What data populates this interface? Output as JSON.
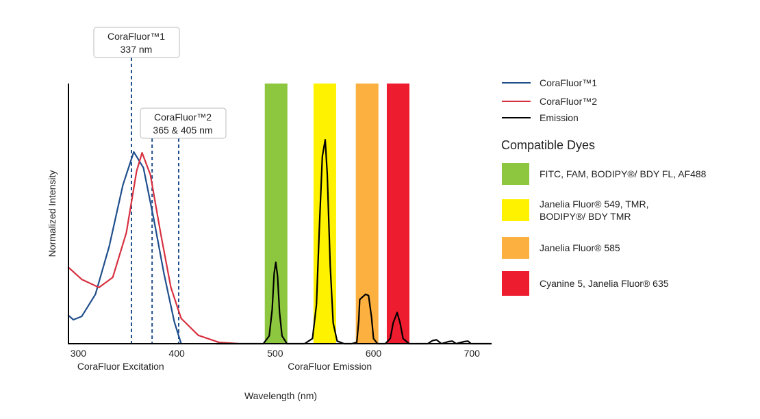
{
  "chart_data": {
    "type": "line",
    "xlabel": "Wavelength (nm)",
    "ylabel": "Normalized Intensity",
    "xlim": [
      290,
      720
    ],
    "ylim": [
      0,
      1
    ],
    "x_ticks": [
      300,
      400,
      500,
      600,
      700
    ],
    "x_sublabels": [
      {
        "text": "CoraFluor Excitation",
        "x": 350
      },
      {
        "text": "CoraFluor Emission",
        "x": 550
      }
    ],
    "grid": false,
    "legend_position": "right",
    "series": [
      {
        "name": "CoraFluor™1",
        "color": "#1f4e8c",
        "points": [
          [
            289.5,
            0.11
          ],
          [
            295,
            0.092
          ],
          [
            303.5,
            0.105
          ],
          [
            317.4,
            0.19
          ],
          [
            331.4,
            0.374
          ],
          [
            345.3,
            0.61
          ],
          [
            356.4,
            0.737
          ],
          [
            366.2,
            0.676
          ],
          [
            376.7,
            0.479
          ],
          [
            387.1,
            0.268
          ],
          [
            397.6,
            0.084
          ],
          [
            404.5,
            0
          ]
        ]
      },
      {
        "name": "CoraFluor™2",
        "color": "#d7303f",
        "points": [
          [
            289.5,
            0.295
          ],
          [
            303.5,
            0.247
          ],
          [
            321,
            0.216
          ],
          [
            335,
            0.255
          ],
          [
            348.8,
            0.426
          ],
          [
            359.2,
            0.663
          ],
          [
            364.8,
            0.734
          ],
          [
            373.2,
            0.65
          ],
          [
            383.6,
            0.426
          ],
          [
            394.1,
            0.216
          ],
          [
            404.5,
            0.097
          ],
          [
            422,
            0.032
          ],
          [
            443,
            0.005
          ],
          [
            463,
            0
          ]
        ]
      },
      {
        "name": "Emission",
        "color": "#000000",
        "points": [
          [
            440,
            0
          ],
          [
            488,
            0
          ],
          [
            494,
            0.03
          ],
          [
            497,
            0.13
          ],
          [
            499,
            0.27
          ],
          [
            500.7,
            0.313
          ],
          [
            502.5,
            0.26
          ],
          [
            504.5,
            0.12
          ],
          [
            507,
            0.03
          ],
          [
            512,
            0
          ],
          [
            530,
            0
          ],
          [
            538,
            0.02
          ],
          [
            542,
            0.15
          ],
          [
            545,
            0.45
          ],
          [
            548,
            0.72
          ],
          [
            550.9,
            0.784
          ],
          [
            553,
            0.65
          ],
          [
            556,
            0.3
          ],
          [
            559,
            0.08
          ],
          [
            563,
            0.01
          ],
          [
            570,
            0
          ],
          [
            578,
            0
          ],
          [
            583,
            0.005
          ],
          [
            585,
            0.09
          ],
          [
            586,
            0.17
          ],
          [
            589,
            0.18
          ],
          [
            592,
            0.19
          ],
          [
            595,
            0.185
          ],
          [
            598,
            0.1
          ],
          [
            600,
            0.02
          ],
          [
            604,
            0
          ],
          [
            612,
            0
          ],
          [
            617,
            0.02
          ],
          [
            620,
            0.08
          ],
          [
            624,
            0.12
          ],
          [
            627,
            0.08
          ],
          [
            630,
            0.02
          ],
          [
            636,
            0
          ],
          [
            655,
            0
          ],
          [
            660,
            0.012
          ],
          [
            664,
            0.015
          ],
          [
            669,
            0
          ],
          [
            676,
            0.008
          ],
          [
            680,
            0.01
          ],
          [
            684,
            0
          ],
          [
            692,
            0.008
          ],
          [
            696,
            0.01
          ],
          [
            699,
            0
          ],
          [
            720,
            0
          ]
        ]
      }
    ],
    "annotations": [
      {
        "line1": "CoraFluor™1",
        "line2": "337 nm",
        "marker_x": [
          354
        ]
      },
      {
        "line1": "CoraFluor™2",
        "line2": "365 & 405 nm",
        "marker_x": [
          375,
          402
        ]
      }
    ],
    "dye_bands": [
      {
        "label": "FITC, FAM, BODIPY®/ BDY FL, AF488",
        "color": "#8dc63f",
        "range": [
          489.5,
          512.5
        ]
      },
      {
        "label": "Janelia Fluor® 549, TMR,\nBODIPY®/ BDY TMR",
        "color": "#fff200",
        "range": [
          539,
          562
        ]
      },
      {
        "label": "Janelia Fluor® 585",
        "color": "#fbb040",
        "range": [
          582,
          605
        ]
      },
      {
        "label": "Cyanine 5, Janelia Fluor® 635",
        "color": "#ed1c2e",
        "range": [
          613.5,
          636.5
        ]
      }
    ],
    "dyes_title": "Compatible Dyes"
  }
}
